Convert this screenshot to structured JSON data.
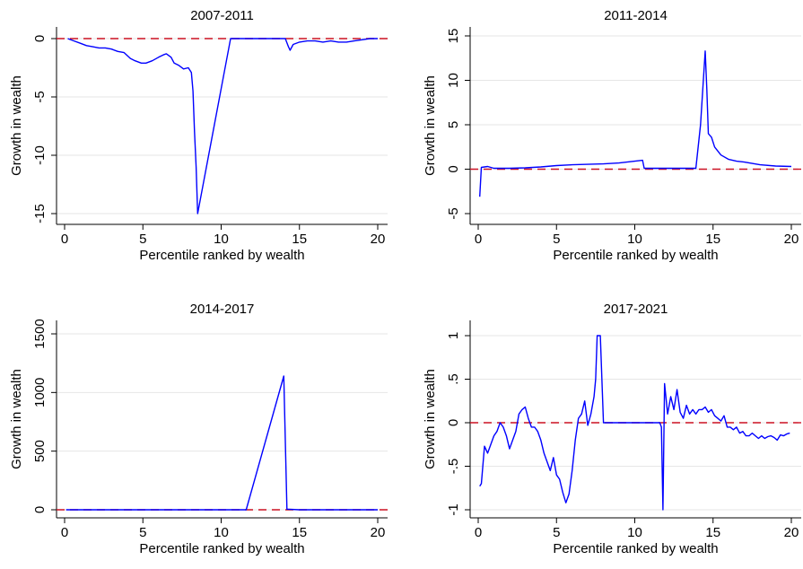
{
  "colors": {
    "line": "#0000ff",
    "reference": "#cc1122",
    "grid": "#e6e6e6",
    "axis": "#000000"
  },
  "chart_data": [
    {
      "type": "line",
      "title": "2007-2011",
      "xlabel": "Percentile ranked by wealth",
      "ylabel": "Growth in wealth",
      "xlim": [
        0,
        20
      ],
      "ylim": [
        -15,
        0
      ],
      "xticks": [
        0,
        5,
        10,
        15,
        20
      ],
      "yticks": [
        -15,
        -10,
        -5,
        0
      ],
      "ytick_labels": [
        "-15",
        "-10",
        "-5",
        "0"
      ],
      "grid": true,
      "reference_line": 0,
      "series": [
        {
          "x": [
            0.2,
            0.6,
            1,
            1.4,
            1.8,
            2.2,
            2.6,
            3,
            3.4,
            3.8,
            4.2,
            4.5,
            4.9,
            5.2,
            5.6,
            6,
            6.3,
            6.5,
            6.8,
            7,
            7.3,
            7.6,
            7.9,
            8.1,
            8.2,
            8.3,
            8.4,
            8.5,
            10.6,
            14.1,
            14.3,
            14.4,
            14.6,
            15,
            15.5,
            16,
            16.5,
            17,
            17.5,
            18,
            18.5,
            19,
            19.5,
            20
          ],
          "y": [
            0,
            -0.2,
            -0.4,
            -0.6,
            -0.7,
            -0.8,
            -0.8,
            -0.9,
            -1.1,
            -1.2,
            -1.7,
            -1.9,
            -2.1,
            -2.1,
            -1.9,
            -1.6,
            -1.4,
            -1.3,
            -1.6,
            -2.1,
            -2.3,
            -2.6,
            -2.5,
            -2.9,
            -4.5,
            -8,
            -11,
            -15,
            0,
            0,
            -0.7,
            -1,
            -0.5,
            -0.3,
            -0.2,
            -0.2,
            -0.3,
            -0.2,
            -0.3,
            -0.3,
            -0.2,
            -0.1,
            0,
            0
          ]
        }
      ]
    },
    {
      "type": "line",
      "title": "2011-2014",
      "xlabel": "Percentile ranked by wealth",
      "ylabel": "Growth in wealth",
      "xlim": [
        0,
        20
      ],
      "ylim": [
        -5,
        15
      ],
      "xticks": [
        0,
        5,
        10,
        15,
        20
      ],
      "yticks": [
        -5,
        0,
        5,
        10,
        15
      ],
      "ytick_labels": [
        "-5",
        "0",
        "5",
        "10",
        "15"
      ],
      "grid": true,
      "reference_line": 0,
      "series": [
        {
          "x": [
            0.1,
            0.2,
            0.6,
            1,
            1.5,
            2,
            3,
            4,
            5,
            6,
            7,
            8,
            9,
            10,
            10.5,
            10.6,
            13.9,
            14.2,
            14.5,
            14.6,
            14.7,
            14.9,
            15.1,
            15.5,
            16,
            16.5,
            17,
            18,
            19,
            20
          ],
          "y": [
            -3.1,
            0.2,
            0.3,
            0.1,
            0.1,
            0.1,
            0.15,
            0.25,
            0.4,
            0.5,
            0.55,
            0.6,
            0.7,
            0.9,
            1,
            0.1,
            0.1,
            5,
            13.3,
            9,
            4,
            3.6,
            2.5,
            1.6,
            1.1,
            0.9,
            0.8,
            0.5,
            0.35,
            0.3
          ]
        }
      ]
    },
    {
      "type": "line",
      "title": "2014-2017",
      "xlabel": "Percentile ranked by wealth",
      "ylabel": "Growth in wealth",
      "xlim": [
        0,
        20
      ],
      "ylim": [
        0,
        1500
      ],
      "xticks": [
        0,
        5,
        10,
        15,
        20
      ],
      "yticks": [
        0,
        500,
        1000,
        1500
      ],
      "ytick_labels": [
        "0",
        "500",
        "1000",
        "1500"
      ],
      "grid": true,
      "reference_line": 0,
      "series": [
        {
          "x": [
            0.1,
            5,
            10,
            11.6,
            14,
            14.2,
            15,
            20
          ],
          "y": [
            0,
            0,
            0,
            0,
            1140,
            5,
            0,
            0
          ]
        }
      ]
    },
    {
      "type": "line",
      "title": "2017-2021",
      "xlabel": "Percentile ranked by wealth",
      "ylabel": "Growth in wealth",
      "xlim": [
        0,
        20
      ],
      "ylim": [
        -1,
        1
      ],
      "xticks": [
        0,
        5,
        10,
        15,
        20
      ],
      "yticks": [
        -1,
        -0.5,
        0,
        0.5,
        1
      ],
      "ytick_labels": [
        "-1",
        "-.5",
        "0",
        ".5",
        "1"
      ],
      "grid": true,
      "reference_line": 0,
      "series": [
        {
          "x": [
            0.1,
            0.2,
            0.4,
            0.6,
            0.8,
            1,
            1.2,
            1.4,
            1.6,
            1.8,
            2,
            2.2,
            2.4,
            2.6,
            2.8,
            3,
            3.2,
            3.4,
            3.6,
            3.8,
            4,
            4.2,
            4.4,
            4.6,
            4.8,
            5,
            5.2,
            5.4,
            5.6,
            5.8,
            6,
            6.2,
            6.4,
            6.6,
            6.8,
            7,
            7.2,
            7.4,
            7.5,
            7.6,
            7.8,
            8,
            11.6,
            11.7,
            11.8,
            11.9,
            12.1,
            12.3,
            12.5,
            12.7,
            12.9,
            13.1,
            13.3,
            13.5,
            13.7,
            13.9,
            14.1,
            14.3,
            14.5,
            14.7,
            14.9,
            15.1,
            15.3,
            15.5,
            15.7,
            15.9,
            16.1,
            16.3,
            16.5,
            16.7,
            16.9,
            17.1,
            17.3,
            17.5,
            17.7,
            17.9,
            18.1,
            18.3,
            18.5,
            18.7,
            18.9,
            19.1,
            19.3,
            19.5,
            19.7,
            19.9
          ],
          "y": [
            -0.73,
            -0.7,
            -0.27,
            -0.35,
            -0.25,
            -0.15,
            -0.1,
            0,
            -0.05,
            -0.15,
            -0.3,
            -0.2,
            -0.1,
            0.1,
            0.15,
            0.18,
            0.05,
            -0.05,
            -0.05,
            -0.1,
            -0.2,
            -0.35,
            -0.45,
            -0.55,
            -0.4,
            -0.6,
            -0.65,
            -0.8,
            -0.92,
            -0.82,
            -0.55,
            -0.2,
            0.05,
            0.1,
            0.25,
            -0.03,
            0.1,
            0.3,
            0.5,
            1,
            1,
            0,
            0,
            -0.05,
            -1,
            0.45,
            0.1,
            0.3,
            0.15,
            0.38,
            0.12,
            0.05,
            0.2,
            0.1,
            0.15,
            0.1,
            0.15,
            0.15,
            0.18,
            0.12,
            0.15,
            0.08,
            0.05,
            0.02,
            0.08,
            -0.05,
            -0.05,
            -0.08,
            -0.05,
            -0.12,
            -0.1,
            -0.15,
            -0.15,
            -0.12,
            -0.15,
            -0.18,
            -0.15,
            -0.18,
            -0.16,
            -0.15,
            -0.17,
            -0.2,
            -0.14,
            -0.15,
            -0.13,
            -0.12
          ]
        }
      ]
    }
  ]
}
